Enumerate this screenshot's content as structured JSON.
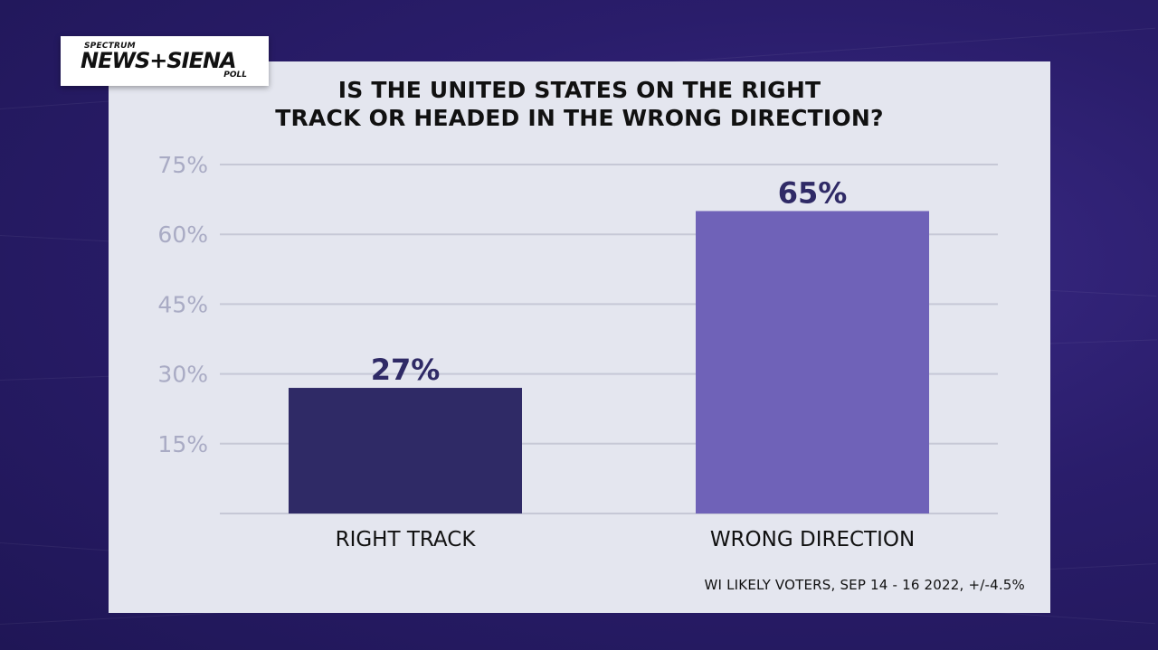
{
  "brand": {
    "top": "SPECTRUM",
    "main": "NEWS+SIENA",
    "sub": "POLL"
  },
  "chart_data": {
    "type": "bar",
    "title_lines": [
      "IS THE UNITED STATES ON THE RIGHT",
      "TRACK OR HEADED IN THE WRONG DIRECTION?"
    ],
    "categories": [
      "RIGHT TRACK",
      "WRONG DIRECTION"
    ],
    "values": [
      27,
      65
    ],
    "value_labels": [
      "27%",
      "65%"
    ],
    "bar_colors": [
      "#2f2a66",
      "#6f62b8"
    ],
    "ylim": [
      0,
      75
    ],
    "yticks": [
      15,
      30,
      45,
      60,
      75
    ],
    "ytick_labels": [
      "15%",
      "30%",
      "45%",
      "60%",
      "75%"
    ],
    "grid": true,
    "footnote": "WI LIKELY VOTERS, SEP 14 - 16 2022, +/-4.5%"
  },
  "colors": {
    "background": "#2a1d6b",
    "panel": "#e4e6ef",
    "gridline": "#c6c8d6",
    "tick_label": "#a9abc4",
    "value_label": "#2f2a66"
  }
}
